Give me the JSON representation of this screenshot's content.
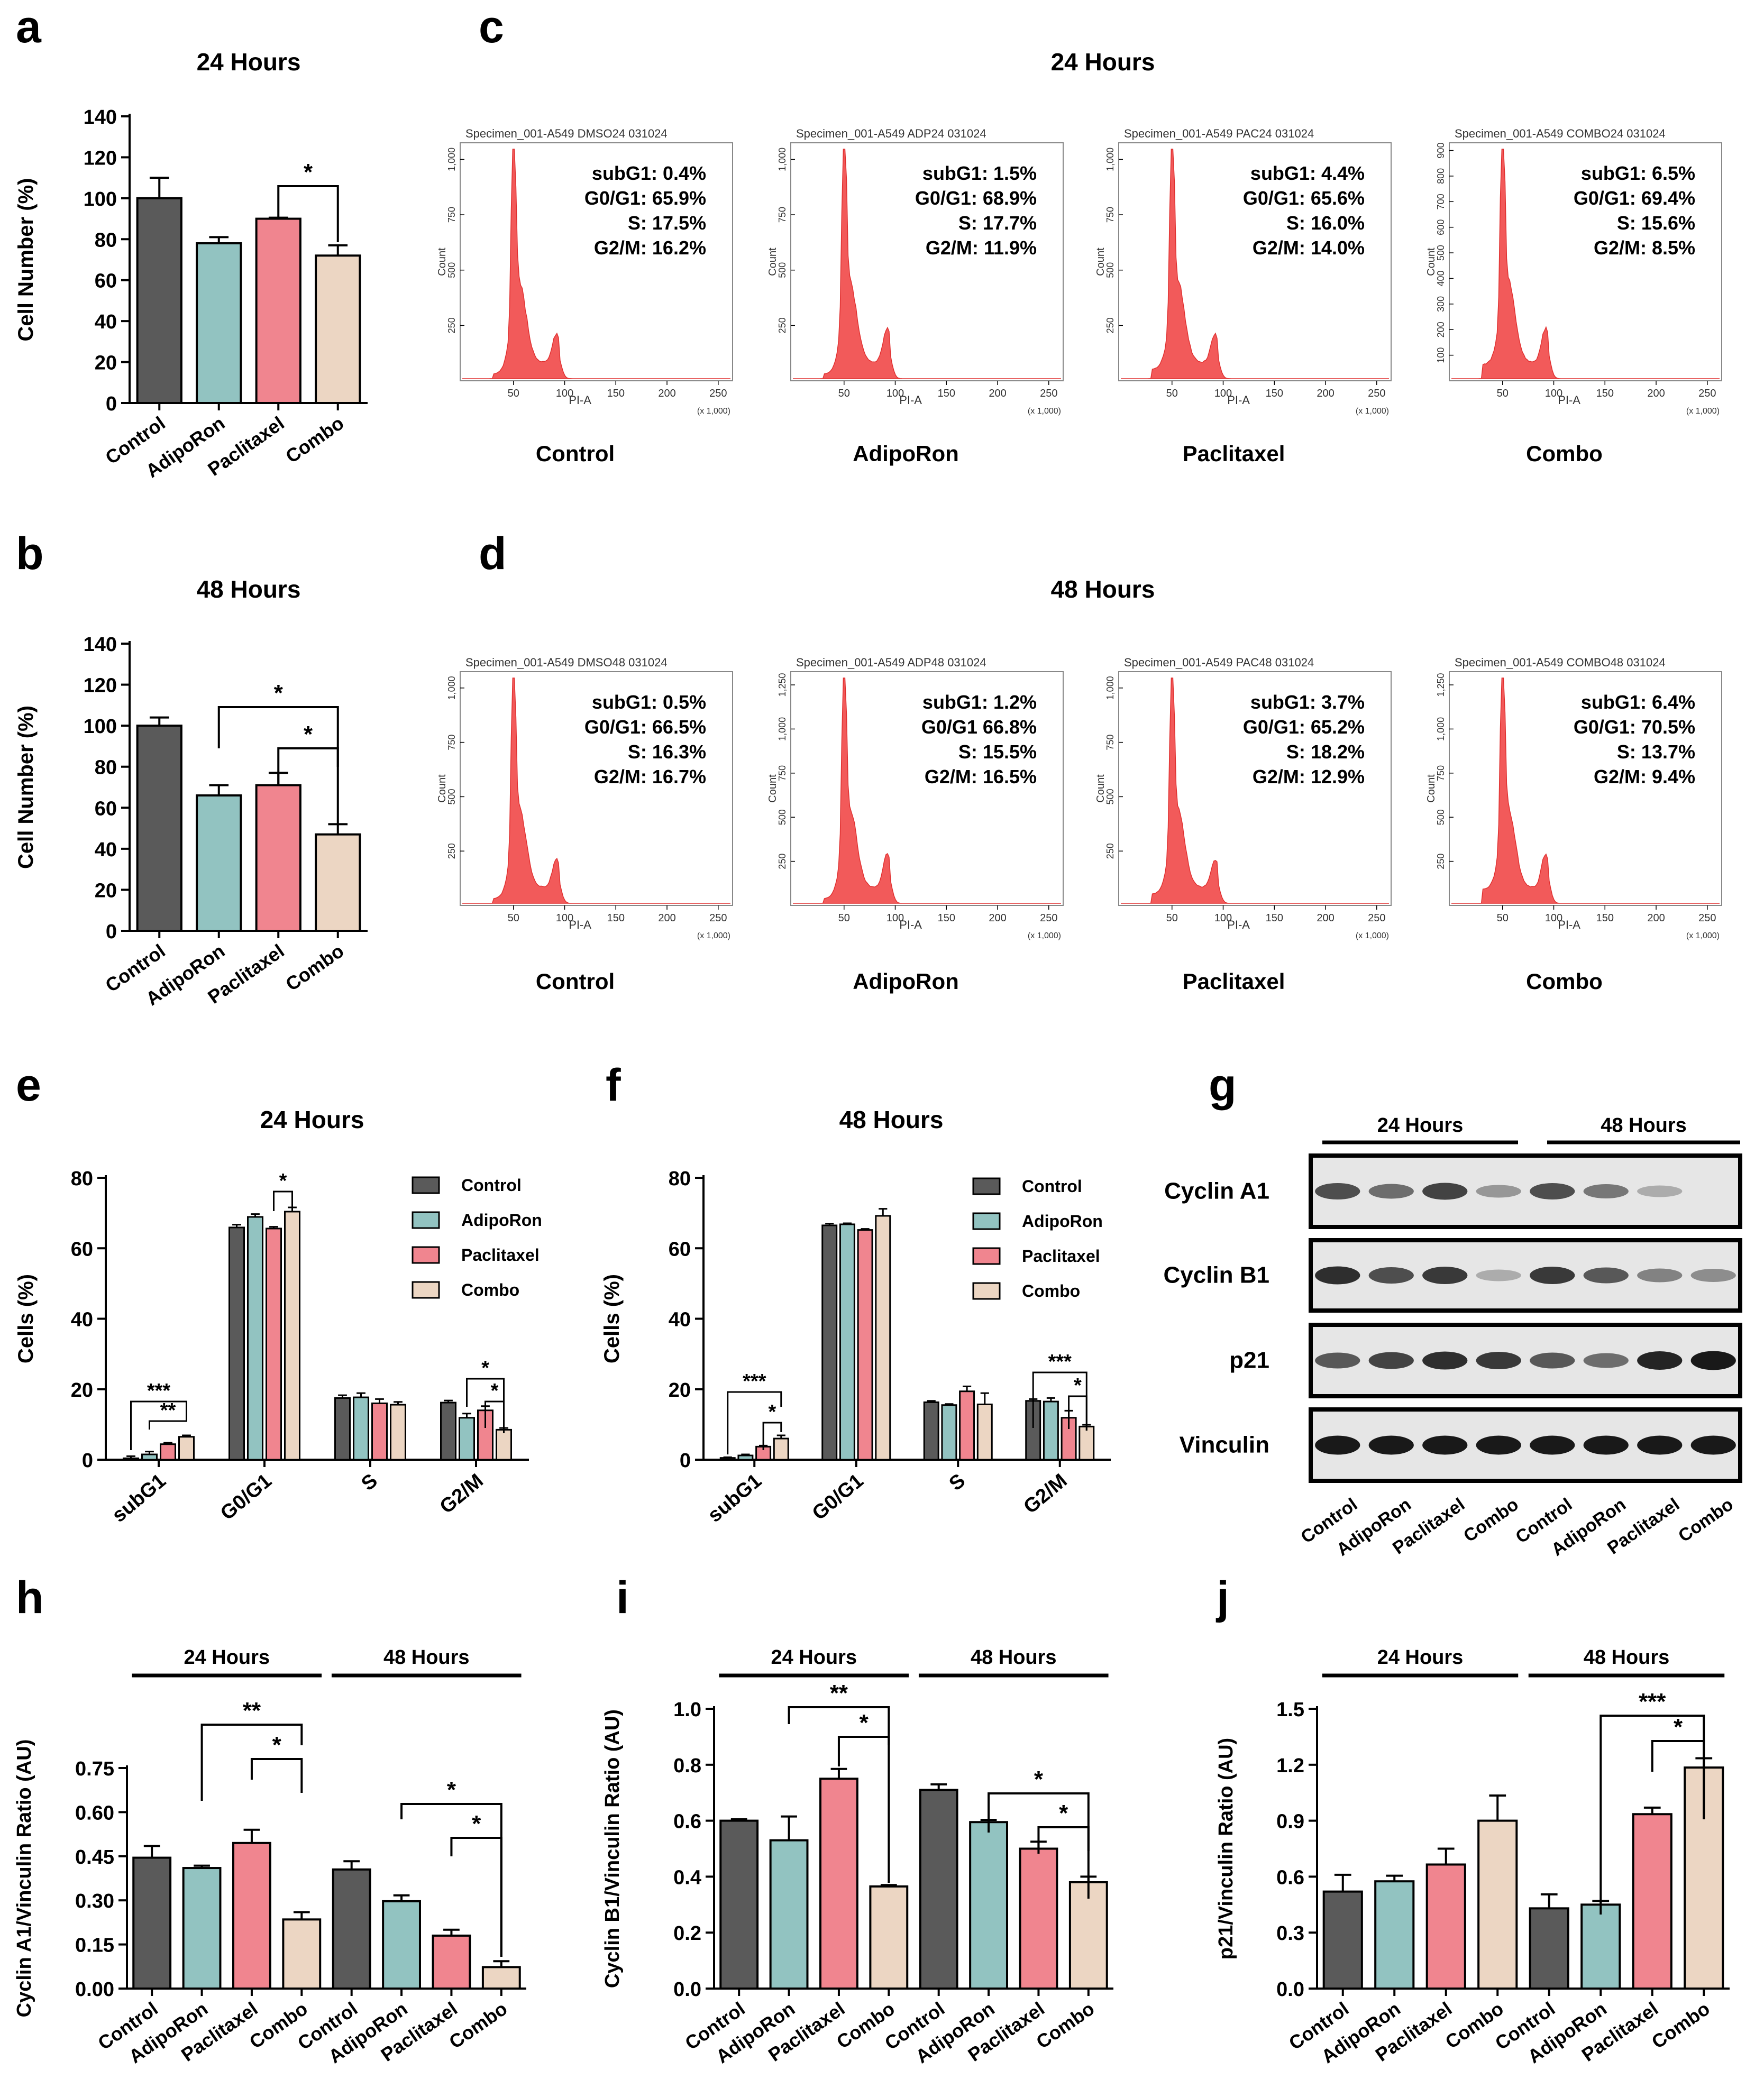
{
  "colors": {
    "control": "#5a5a5a",
    "adiporon": "#92c3c1",
    "paclitaxel": "#f0858f",
    "combo": "#ecd6c3",
    "histogram": "#f25a5a",
    "axis": "#000000"
  },
  "panel_letters": [
    "a",
    "b",
    "c",
    "d",
    "e",
    "f",
    "g",
    "h",
    "i",
    "j"
  ],
  "conditions": [
    "Control",
    "AdipoRon",
    "Paclitaxel",
    "Combo"
  ],
  "chart_data": [
    {
      "id": "a",
      "type": "bar",
      "title": "24 Hours",
      "ylabel": "Cell Number (%)",
      "ylim": [
        0,
        140
      ],
      "yticks": [
        0,
        20,
        40,
        60,
        80,
        100,
        120,
        140
      ],
      "categories": [
        "Control",
        "AdipoRon",
        "Paclitaxel",
        "Combo"
      ],
      "values": [
        100,
        78,
        90,
        72
      ],
      "errors": [
        10,
        3,
        0.5,
        5
      ],
      "significance": [
        {
          "from": "Paclitaxel",
          "to": "Combo",
          "label": "*"
        }
      ]
    },
    {
      "id": "b",
      "type": "bar",
      "title": "48 Hours",
      "ylabel": "Cell Number (%)",
      "ylim": [
        0,
        140
      ],
      "yticks": [
        0,
        20,
        40,
        60,
        80,
        100,
        120,
        140
      ],
      "categories": [
        "Control",
        "AdipoRon",
        "Paclitaxel",
        "Combo"
      ],
      "values": [
        100,
        66,
        71,
        47
      ],
      "errors": [
        4,
        5,
        6,
        5
      ],
      "significance": [
        {
          "from": "AdipoRon",
          "to": "Combo",
          "label": "*"
        },
        {
          "from": "Paclitaxel",
          "to": "Combo",
          "label": "*"
        }
      ]
    },
    {
      "id": "c",
      "type": "histogram",
      "title": "24 Hours",
      "xlabel": "PI-A",
      "ylabel": "Count",
      "xticks": [
        "50",
        "100",
        "150",
        "200",
        "250"
      ],
      "xunit": "(x 1,000)",
      "plots": [
        {
          "specimen": "Specimen_001-A549 DMSO24 031024",
          "condition": "Control",
          "yticks": [
            "250",
            "500",
            "750",
            "1,000"
          ],
          "stats": [
            "subG1: 0.4%",
            "G0/G1: 65.9%",
            "S: 17.5%",
            "G2/M: 16.2%"
          ]
        },
        {
          "specimen": "Specimen_001-A549 ADP24 031024",
          "condition": "AdipoRon",
          "yticks": [
            "250",
            "500",
            "750",
            "1,000"
          ],
          "stats": [
            "subG1: 1.5%",
            "G0/G1: 68.9%",
            "S: 17.7%",
            "G2/M: 11.9%"
          ]
        },
        {
          "specimen": "Specimen_001-A549 PAC24 031024",
          "condition": "Paclitaxel",
          "yticks": [
            "250",
            "500",
            "750",
            "1,000"
          ],
          "stats": [
            "subG1: 4.4%",
            "G0/G1: 65.6%",
            "S: 16.0%",
            "G2/M: 14.0%"
          ]
        },
        {
          "specimen": "Specimen_001-A549 COMBO24 031024",
          "condition": "Combo",
          "yticks": [
            "100",
            "200",
            "300",
            "400",
            "500",
            "600",
            "700",
            "800",
            "900"
          ],
          "stats": [
            "subG1: 6.5%",
            "G0/G1: 69.4%",
            "S: 15.6%",
            "G2/M: 8.5%"
          ]
        }
      ]
    },
    {
      "id": "d",
      "type": "histogram",
      "title": "48 Hours",
      "xlabel": "PI-A",
      "ylabel": "Count",
      "xticks": [
        "50",
        "100",
        "150",
        "200",
        "250"
      ],
      "xunit": "(x 1,000)",
      "plots": [
        {
          "specimen": "Specimen_001-A549 DMSO48 031024",
          "condition": "Control",
          "yticks": [
            "250",
            "500",
            "750",
            "1,000"
          ],
          "stats": [
            "subG1: 0.5%",
            "G0/G1: 66.5%",
            "S: 16.3%",
            "G2/M: 16.7%"
          ]
        },
        {
          "specimen": "Specimen_001-A549 ADP48 031024",
          "condition": "AdipoRon",
          "yticks": [
            "250",
            "500",
            "750",
            "1,000",
            "1,250"
          ],
          "stats": [
            "subG1: 1.2%",
            "G0/G1 66.8%",
            "S: 15.5%",
            "G2/M: 16.5%"
          ]
        },
        {
          "specimen": "Specimen_001-A549 PAC48 031024",
          "condition": "Paclitaxel",
          "yticks": [
            "250",
            "500",
            "750",
            "1,000"
          ],
          "stats": [
            "subG1: 3.7%",
            "G0/G1: 65.2%",
            "S: 18.2%",
            "G2/M: 12.9%"
          ]
        },
        {
          "specimen": "Specimen_001-A549 COMBO48 031024",
          "condition": "Combo",
          "yticks": [
            "250",
            "500",
            "750",
            "1,000",
            "1,250"
          ],
          "stats": [
            "subG1: 6.4%",
            "G0/G1: 70.5%",
            "S: 13.7%",
            "G2/M: 9.4%"
          ]
        }
      ]
    },
    {
      "id": "e",
      "type": "grouped-bar",
      "title": "24 Hours",
      "ylabel": "Cells (%)",
      "ylim": [
        0,
        80
      ],
      "yticks": [
        0,
        20,
        40,
        60,
        80
      ],
      "legend": "top-right",
      "categories": [
        "subG1",
        "G0/G1",
        "S",
        "G2/M"
      ],
      "series": [
        {
          "name": "Control",
          "values": [
            0.4,
            65.9,
            17.5,
            16.2
          ],
          "errors": [
            0.6,
            0.8,
            0.8,
            0.6
          ]
        },
        {
          "name": "AdipoRon",
          "values": [
            1.5,
            68.9,
            17.7,
            11.9
          ],
          "errors": [
            0.8,
            0.8,
            1.2,
            1.2
          ]
        },
        {
          "name": "Paclitaxel",
          "values": [
            4.4,
            65.6,
            16.0,
            14.0
          ],
          "errors": [
            0.4,
            0.5,
            1.2,
            1.2
          ]
        },
        {
          "name": "Combo",
          "values": [
            6.5,
            70.4,
            15.6,
            8.5
          ],
          "errors": [
            0.4,
            1.2,
            0.8,
            0.5
          ]
        }
      ],
      "significance": [
        {
          "category": "subG1",
          "from": "Control",
          "to": "Combo",
          "label": "***"
        },
        {
          "category": "subG1",
          "from": "AdipoRon",
          "to": "Combo",
          "label": "**"
        },
        {
          "category": "G0/G1",
          "from": "Paclitaxel",
          "to": "Combo",
          "label": "*"
        },
        {
          "category": "G2/M",
          "from": "AdipoRon",
          "to": "Combo",
          "label": "*"
        },
        {
          "category": "G2/M",
          "from": "Paclitaxel",
          "to": "Combo",
          "label": "*"
        }
      ]
    },
    {
      "id": "f",
      "type": "grouped-bar",
      "title": "48 Hours",
      "ylabel": "Cells (%)",
      "ylim": [
        0,
        80
      ],
      "yticks": [
        0,
        20,
        40,
        60,
        80
      ],
      "legend": "top-right",
      "categories": [
        "subG1",
        "G0/G1",
        "S",
        "G2/M"
      ],
      "series": [
        {
          "name": "Control",
          "values": [
            0.5,
            66.5,
            16.3,
            16.7
          ],
          "errors": [
            0.2,
            0.5,
            0.4,
            0.5
          ]
        },
        {
          "name": "AdipoRon",
          "values": [
            1.2,
            66.8,
            15.5,
            16.5
          ],
          "errors": [
            0.3,
            0.3,
            0.3,
            1.0
          ]
        },
        {
          "name": "Paclitaxel",
          "values": [
            3.7,
            65.2,
            19.4,
            11.9
          ],
          "errors": [
            0.3,
            0.3,
            1.4,
            2.0
          ]
        },
        {
          "name": "Combo",
          "values": [
            6.0,
            69.2,
            15.7,
            9.4
          ],
          "errors": [
            0.9,
            2.0,
            3.2,
            0.5
          ]
        }
      ],
      "significance": [
        {
          "category": "subG1",
          "from": "Control",
          "to": "Combo",
          "label": "***"
        },
        {
          "category": "subG1",
          "from": "Paclitaxel",
          "to": "Combo",
          "label": "*"
        },
        {
          "category": "G2/M",
          "from": "Control",
          "to": "Combo",
          "label": "***"
        },
        {
          "category": "G2/M",
          "from": "Paclitaxel",
          "to": "Combo",
          "label": "*"
        }
      ]
    },
    {
      "id": "g",
      "type": "western-blot",
      "groups": [
        "24 Hours",
        "48 Hours"
      ],
      "lanes": [
        "Control",
        "AdipoRon",
        "Paclitaxel",
        "Combo",
        "Control",
        "AdipoRon",
        "Paclitaxel",
        "Combo"
      ],
      "rows": [
        {
          "label": "Cyclin A1",
          "intensity": [
            0.75,
            0.6,
            0.8,
            0.4,
            0.75,
            0.55,
            0.3,
            0.0
          ]
        },
        {
          "label": "Cyclin B1",
          "intensity": [
            0.9,
            0.75,
            0.85,
            0.3,
            0.85,
            0.7,
            0.5,
            0.45
          ]
        },
        {
          "label": "p21",
          "intensity": [
            0.7,
            0.8,
            0.9,
            0.85,
            0.7,
            0.6,
            0.95,
            1.0
          ]
        },
        {
          "label": "Vinculin",
          "intensity": [
            1.0,
            1.0,
            1.0,
            1.0,
            1.0,
            1.0,
            1.0,
            1.0
          ]
        }
      ]
    },
    {
      "id": "h",
      "type": "bar",
      "ylabel": "Cyclin A1/Vinculin Ratio (AU)",
      "ylim": [
        0,
        0.75
      ],
      "yticks": [
        "0.00",
        "0.15",
        "0.30",
        "0.45",
        "0.60",
        "0.75"
      ],
      "groups": [
        "24 Hours",
        "48 Hours"
      ],
      "categories": [
        "Control",
        "AdipoRon",
        "Paclitaxel",
        "Combo",
        "Control",
        "AdipoRon",
        "Paclitaxel",
        "Combo"
      ],
      "values": [
        0.445,
        0.41,
        0.495,
        0.235,
        0.405,
        0.297,
        0.18,
        0.073
      ],
      "errors": [
        0.04,
        0.008,
        0.045,
        0.025,
        0.028,
        0.02,
        0.02,
        0.02
      ],
      "significance": [
        {
          "from": 1,
          "to": 3,
          "label": "**"
        },
        {
          "from": 2,
          "to": 3,
          "label": "*"
        },
        {
          "from": 5,
          "to": 7,
          "label": "*"
        },
        {
          "from": 6,
          "to": 7,
          "label": "*"
        }
      ]
    },
    {
      "id": "i",
      "type": "bar",
      "ylabel": "Cyclin B1/Vinculin Ratio (AU)",
      "ylim": [
        0,
        1.0
      ],
      "yticks": [
        "0.0",
        "0.2",
        "0.4",
        "0.6",
        "0.8",
        "1.0"
      ],
      "groups": [
        "24 Hours",
        "48 Hours"
      ],
      "categories": [
        "Control",
        "AdipoRon",
        "Paclitaxel",
        "Combo",
        "Control",
        "AdipoRon",
        "Paclitaxel",
        "Combo"
      ],
      "values": [
        0.6,
        0.53,
        0.75,
        0.365,
        0.71,
        0.595,
        0.5,
        0.38
      ],
      "errors": [
        0.005,
        0.085,
        0.035,
        0.005,
        0.02,
        0.008,
        0.025,
        0.02
      ],
      "significance": [
        {
          "from": 1,
          "to": 3,
          "label": "**"
        },
        {
          "from": 2,
          "to": 3,
          "label": "*"
        },
        {
          "from": 5,
          "to": 7,
          "label": "*"
        },
        {
          "from": 6,
          "to": 7,
          "label": "*"
        }
      ]
    },
    {
      "id": "j",
      "type": "bar",
      "ylabel": "p21/Vinculin Ratio (AU)",
      "ylim": [
        0,
        1.5
      ],
      "yticks": [
        "0.0",
        "0.3",
        "0.6",
        "0.9",
        "1.2",
        "1.5"
      ],
      "groups": [
        "24 Hours",
        "48 Hours"
      ],
      "categories": [
        "Control",
        "AdipoRon",
        "Paclitaxel",
        "Combo",
        "Control",
        "AdipoRon",
        "Paclitaxel",
        "Combo"
      ],
      "values": [
        0.52,
        0.575,
        0.665,
        0.9,
        0.43,
        0.45,
        0.935,
        1.185
      ],
      "errors": [
        0.09,
        0.03,
        0.085,
        0.135,
        0.075,
        0.02,
        0.035,
        0.05
      ],
      "significance": [
        {
          "from": 5,
          "to": 7,
          "label": "***"
        },
        {
          "from": 6,
          "to": 7,
          "label": "*"
        }
      ]
    }
  ]
}
